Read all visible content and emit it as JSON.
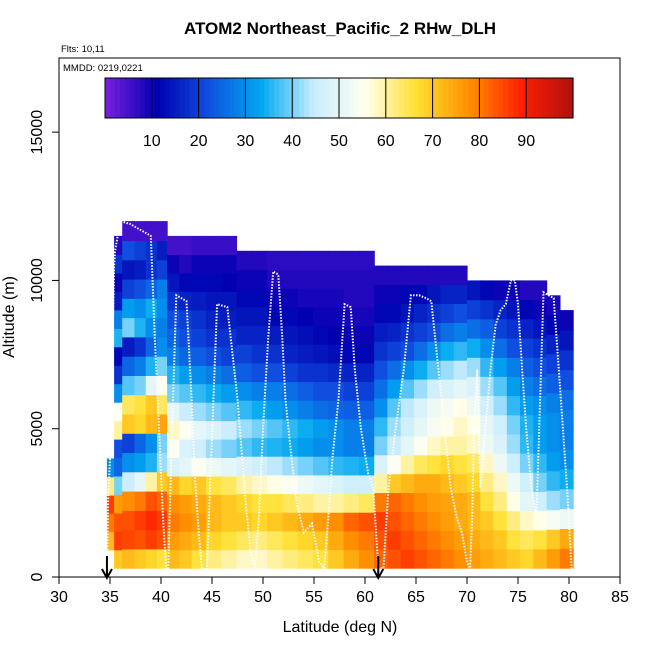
{
  "chart_data": {
    "type": "heatmap",
    "title": "ATOM2 Northeast_Pacific_2 RHw_DLH",
    "flights_label": "Flts: 10,11",
    "date_label": "MMDD: 0219,0221",
    "xlabel": "Latitude (deg N)",
    "ylabel": "Altitude (m)",
    "xlim": [
      30,
      85
    ],
    "ylim": [
      0,
      17500
    ],
    "xticks": [
      30,
      35,
      40,
      45,
      50,
      55,
      60,
      65,
      70,
      75,
      80,
      85
    ],
    "yticks": [
      0,
      5000,
      10000,
      15000
    ],
    "colorbar": {
      "range": [
        0,
        100
      ],
      "ticks": [
        10,
        20,
        30,
        40,
        50,
        60,
        70,
        80,
        90
      ],
      "colors": [
        "#7a1fe0",
        "#0000b0",
        "#1050e0",
        "#00a8f0",
        "#c8ecff",
        "#fffff0",
        "#ffe030",
        "#ff9000",
        "#ff2000",
        "#b01010"
      ]
    },
    "arrows_lat": [
      34.7,
      61.3
    ],
    "columns": [
      {
        "lat": [
          34.7,
          35.4
        ],
        "alt": [
          300,
          4000
        ],
        "rh": [
          55,
          72,
          80,
          86,
          62,
          30
        ]
      },
      {
        "lat": [
          35.4,
          36.2
        ],
        "alt": [
          300,
          11500
        ],
        "rh": [
          70,
          86,
          84,
          76,
          40,
          25,
          22,
          60,
          55,
          30,
          18,
          12,
          35,
          28,
          15,
          10,
          18,
          8
        ]
      },
      {
        "lat": [
          36.2,
          37.4
        ],
        "alt": [
          300,
          12000
        ],
        "rh": [
          72,
          85,
          84,
          78,
          45,
          30,
          20,
          70,
          64,
          38,
          25,
          15,
          40,
          32,
          20,
          14,
          22,
          5
        ]
      },
      {
        "lat": [
          37.4,
          38.5
        ],
        "alt": [
          300,
          12000
        ],
        "rh": [
          70,
          84,
          86,
          80,
          50,
          32,
          25,
          68,
          66,
          40,
          28,
          18,
          35,
          30,
          22,
          15,
          20,
          5
        ]
      },
      {
        "lat": [
          38.5,
          39.6
        ],
        "alt": [
          300,
          12000
        ],
        "rh": [
          68,
          86,
          88,
          84,
          60,
          35,
          30,
          72,
          70,
          50,
          35,
          25,
          30,
          34,
          25,
          18,
          18,
          5
        ]
      },
      {
        "lat": [
          39.6,
          40.6
        ],
        "alt": [
          300,
          12000
        ],
        "rh": [
          66,
          84,
          86,
          82,
          70,
          42,
          40,
          75,
          64,
          55,
          40,
          30,
          28,
          30,
          28,
          20,
          15,
          5
        ]
      },
      {
        "lat": [
          40.6,
          41.8
        ],
        "alt": [
          300,
          11500
        ],
        "rh": [
          72,
          76,
          80,
          78,
          72,
          48,
          55,
          58,
          50,
          40,
          35,
          28,
          25,
          22,
          18,
          14,
          10,
          5
        ]
      },
      {
        "lat": [
          41.8,
          43.0
        ],
        "alt": [
          300,
          11500
        ],
        "rh": [
          70,
          74,
          78,
          76,
          68,
          50,
          48,
          55,
          45,
          38,
          32,
          25,
          22,
          20,
          16,
          12,
          8,
          5
        ]
      },
      {
        "lat": [
          43.0,
          44.4
        ],
        "alt": [
          300,
          11500
        ],
        "rh": [
          66,
          72,
          76,
          74,
          70,
          55,
          46,
          50,
          42,
          36,
          30,
          24,
          20,
          18,
          15,
          12,
          10,
          6
        ]
      },
      {
        "lat": [
          44.4,
          45.9
        ],
        "alt": [
          300,
          11500
        ],
        "rh": [
          62,
          68,
          72,
          72,
          66,
          52,
          42,
          48,
          40,
          34,
          28,
          22,
          18,
          16,
          14,
          12,
          10,
          6
        ]
      },
      {
        "lat": [
          45.9,
          47.4
        ],
        "alt": [
          300,
          11500
        ],
        "rh": [
          60,
          66,
          70,
          70,
          64,
          50,
          40,
          45,
          38,
          32,
          26,
          20,
          18,
          15,
          14,
          11,
          10,
          6
        ]
      },
      {
        "lat": [
          47.4,
          48.9
        ],
        "alt": [
          300,
          11000
        ],
        "rh": [
          58,
          64,
          70,
          68,
          60,
          48,
          38,
          42,
          36,
          30,
          24,
          20,
          16,
          14,
          12,
          10,
          8
        ]
      },
      {
        "lat": [
          48.9,
          50.4
        ],
        "alt": [
          300,
          11000
        ],
        "rh": [
          58,
          62,
          68,
          66,
          58,
          46,
          36,
          40,
          34,
          28,
          22,
          18,
          16,
          14,
          12,
          10,
          8
        ]
      },
      {
        "lat": [
          50.4,
          51.9
        ],
        "alt": [
          300,
          11000
        ],
        "rh": [
          60,
          64,
          70,
          66,
          56,
          44,
          35,
          38,
          32,
          28,
          22,
          18,
          15,
          12,
          10,
          8,
          7
        ]
      },
      {
        "lat": [
          51.9,
          53.4
        ],
        "alt": [
          300,
          11000
        ],
        "rh": [
          62,
          66,
          72,
          64,
          55,
          42,
          34,
          36,
          30,
          26,
          20,
          16,
          14,
          12,
          10,
          8,
          7
        ]
      },
      {
        "lat": [
          53.4,
          54.9
        ],
        "alt": [
          300,
          11000
        ],
        "rh": [
          64,
          68,
          74,
          62,
          52,
          40,
          32,
          34,
          28,
          24,
          18,
          15,
          13,
          11,
          9,
          8,
          7
        ]
      },
      {
        "lat": [
          54.9,
          56.4
        ],
        "alt": [
          300,
          11000
        ],
        "rh": [
          66,
          70,
          76,
          60,
          50,
          38,
          30,
          32,
          26,
          22,
          18,
          14,
          12,
          10,
          9,
          8,
          7
        ]
      },
      {
        "lat": [
          56.4,
          57.9
        ],
        "alt": [
          300,
          11000
        ],
        "rh": [
          70,
          74,
          78,
          60,
          48,
          36,
          30,
          30,
          25,
          22,
          17,
          13,
          11,
          10,
          9,
          8,
          7
        ]
      },
      {
        "lat": [
          57.9,
          59.4
        ],
        "alt": [
          300,
          11000
        ],
        "rh": [
          74,
          78,
          82,
          62,
          46,
          35,
          28,
          28,
          24,
          20,
          16,
          12,
          10,
          9,
          8,
          8,
          7
        ]
      },
      {
        "lat": [
          59.4,
          60.9
        ],
        "alt": [
          300,
          11000
        ],
        "rh": [
          78,
          80,
          84,
          64,
          46,
          34,
          28,
          28,
          24,
          20,
          16,
          12,
          10,
          9,
          8,
          8,
          7
        ]
      },
      {
        "lat": [
          60.9,
          62.2
        ],
        "alt": [
          300,
          10500
        ],
        "rh": [
          82,
          84,
          86,
          80,
          60,
          48,
          40,
          36,
          30,
          26,
          22,
          18,
          15,
          12,
          10,
          8
        ]
      },
      {
        "lat": [
          62.2,
          63.5
        ],
        "alt": [
          300,
          10500
        ],
        "rh": [
          84,
          86,
          84,
          82,
          70,
          55,
          45,
          42,
          38,
          32,
          26,
          20,
          16,
          12,
          10,
          8
        ]
      },
      {
        "lat": [
          63.5,
          64.8
        ],
        "alt": [
          300,
          10500
        ],
        "rh": [
          86,
          84,
          82,
          80,
          72,
          60,
          50,
          46,
          44,
          38,
          30,
          22,
          18,
          14,
          12,
          8
        ]
      },
      {
        "lat": [
          64.8,
          66.1
        ],
        "alt": [
          300,
          10500
        ],
        "rh": [
          84,
          82,
          80,
          78,
          74,
          64,
          55,
          50,
          48,
          42,
          34,
          26,
          20,
          16,
          12,
          8
        ]
      },
      {
        "lat": [
          66.1,
          67.4
        ],
        "alt": [
          300,
          10500
        ],
        "rh": [
          82,
          80,
          78,
          76,
          74,
          66,
          58,
          54,
          52,
          46,
          38,
          30,
          22,
          18,
          14,
          8
        ]
      },
      {
        "lat": [
          67.4,
          68.7
        ],
        "alt": [
          300,
          10500
        ],
        "rh": [
          80,
          78,
          76,
          75,
          72,
          68,
          60,
          56,
          54,
          48,
          42,
          34,
          26,
          20,
          16,
          8
        ]
      },
      {
        "lat": [
          68.7,
          70.0
        ],
        "alt": [
          300,
          10500
        ],
        "rh": [
          78,
          76,
          74,
          74,
          70,
          66,
          60,
          58,
          56,
          50,
          44,
          36,
          28,
          22,
          16,
          8
        ]
      },
      {
        "lat": [
          70.0,
          71.3
        ],
        "alt": [
          300,
          10000
        ],
        "rh": [
          76,
          74,
          72,
          72,
          68,
          64,
          58,
          56,
          52,
          48,
          42,
          34,
          26,
          20,
          14
        ]
      },
      {
        "lat": [
          71.3,
          72.6
        ],
        "alt": [
          300,
          10000
        ],
        "rh": [
          74,
          72,
          70,
          66,
          62,
          58,
          52,
          50,
          46,
          42,
          36,
          30,
          24,
          18,
          12
        ]
      },
      {
        "lat": [
          72.6,
          73.9
        ],
        "alt": [
          300,
          10000
        ],
        "rh": [
          72,
          70,
          66,
          62,
          58,
          52,
          48,
          46,
          42,
          38,
          32,
          26,
          20,
          16,
          10
        ]
      },
      {
        "lat": [
          73.9,
          75.2
        ],
        "alt": [
          300,
          10000
        ],
        "rh": [
          70,
          66,
          62,
          56,
          52,
          46,
          42,
          40,
          36,
          32,
          28,
          22,
          18,
          14,
          10
        ]
      },
      {
        "lat": [
          75.2,
          76.5
        ],
        "alt": [
          300,
          10000
        ],
        "rh": [
          68,
          64,
          58,
          50,
          46,
          40,
          36,
          35,
          32,
          28,
          24,
          20,
          16,
          12,
          8
        ]
      },
      {
        "lat": [
          76.5,
          77.8
        ],
        "alt": [
          300,
          10000
        ],
        "rh": [
          72,
          66,
          56,
          46,
          40,
          36,
          32,
          32,
          30,
          26,
          22,
          18,
          14,
          10,
          8
        ]
      },
      {
        "lat": [
          77.8,
          79.1
        ],
        "alt": [
          300,
          9500
        ],
        "rh": [
          76,
          70,
          54,
          42,
          36,
          32,
          30,
          30,
          28,
          24,
          20,
          16,
          12,
          9
        ]
      },
      {
        "lat": [
          79.1,
          80.4
        ],
        "alt": [
          300,
          9000
        ],
        "rh": [
          80,
          74,
          52,
          40,
          34,
          30,
          28,
          28,
          26,
          22,
          18,
          14,
          10
        ]
      }
    ],
    "flight_track": {
      "lat": [
        34.7,
        34.8,
        35.0,
        35.2,
        35.4,
        35.5,
        36.0,
        37.0,
        38.0,
        39.0,
        39.4,
        39.8,
        40.2,
        40.5,
        40.7,
        41.0,
        41.5,
        42.0,
        42.5,
        43.0,
        43.3,
        43.7,
        44.0,
        44.5,
        45.5,
        46.5,
        47.5,
        48.3,
        48.8,
        49.2,
        49.6,
        50.0,
        50.5,
        51.0,
        51.5,
        51.9,
        52.2,
        52.8,
        53.3,
        54.0,
        54.8,
        55.5,
        56.0,
        56.4,
        56.8,
        57.4,
        58.0,
        58.6,
        59.0,
        59.6,
        60.3,
        60.8,
        61.3,
        61.8,
        62.3,
        63.0,
        63.8,
        64.5,
        65.3,
        66.0,
        66.5,
        67.2,
        67.8,
        68.4,
        69.0,
        69.5,
        70.0,
        70.3,
        70.5,
        70.7,
        71.0,
        71.3,
        71.8,
        72.3,
        72.8,
        73.3,
        73.8,
        74.3,
        74.7,
        75.0,
        75.4,
        75.8,
        76.3,
        76.8,
        77.5,
        78.0,
        78.5,
        79.0,
        79.4,
        79.8,
        80.3
      ],
      "alt": [
        0,
        2500,
        4000,
        7000,
        10500,
        11000,
        12000,
        11900,
        11700,
        11500,
        8000,
        5000,
        2000,
        300,
        200,
        4000,
        9500,
        9400,
        9300,
        6000,
        3500,
        1500,
        300,
        250,
        9200,
        9100,
        6000,
        2500,
        800,
        300,
        2000,
        5000,
        8000,
        10300,
        10200,
        8000,
        6000,
        4000,
        2500,
        1500,
        1800,
        500,
        300,
        2000,
        4000,
        6000,
        9200,
        9100,
        7000,
        5000,
        3500,
        3000,
        300,
        300,
        3000,
        5000,
        7000,
        9500,
        9500,
        9400,
        9300,
        7000,
        5000,
        3000,
        2000,
        1500,
        500,
        300,
        2000,
        5000,
        7000,
        3000,
        5000,
        7000,
        8500,
        9000,
        9200,
        10000,
        10000,
        9200,
        7000,
        5000,
        3000,
        2000,
        9600,
        9500,
        9400,
        7000,
        5000,
        3000,
        0
      ]
    }
  }
}
